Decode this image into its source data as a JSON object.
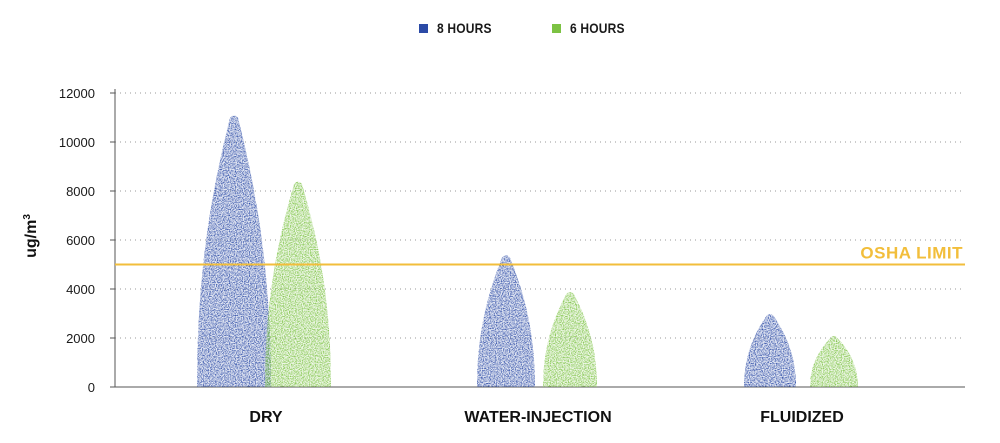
{
  "chart_data": {
    "type": "bar",
    "title": "",
    "xlabel": "",
    "ylabel": "ug/m",
    "ylabel_superscript": "3",
    "ylim": [
      0,
      12000
    ],
    "yticks": [
      "0",
      "2000",
      "4000",
      "6000",
      "8000",
      "10000",
      "12000"
    ],
    "grid": true,
    "legend_position": "top-center",
    "categories": [
      "DRY",
      "WATER-INJECTION",
      "FLUIDIZED"
    ],
    "series": [
      {
        "name": "8 HOURS",
        "values": [
          11100,
          5400,
          3000
        ],
        "color": "#2b4aa6"
      },
      {
        "name": "6 HOURS",
        "values": [
          8400,
          3900,
          2100
        ],
        "color": "#7cc243"
      }
    ],
    "reference_line": {
      "label": "OSHA LIMIT",
      "value": 5000,
      "color": "#f2be3b"
    }
  }
}
